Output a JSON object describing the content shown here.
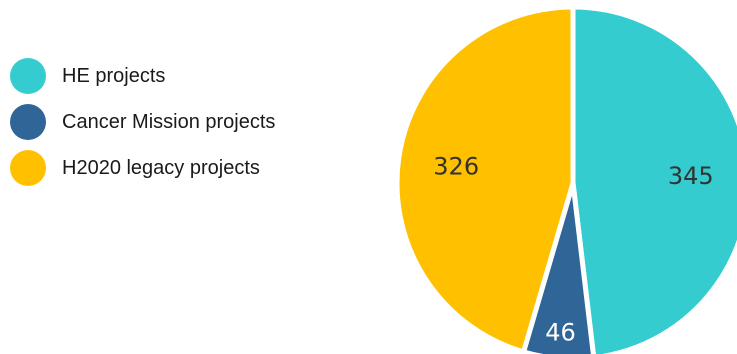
{
  "chart_data": {
    "type": "pie",
    "title": "",
    "legend_position": "left",
    "slices": [
      {
        "label": "HE projects",
        "value": 345,
        "color": "#35cccf",
        "label_color": "#333333"
      },
      {
        "label": "Cancer Mission projects",
        "value": 46,
        "color": "#2f6597",
        "label_color": "#ffffff"
      },
      {
        "label": "H2020 legacy projects",
        "value": 326,
        "color": "#ffc000",
        "label_color": "#333333"
      }
    ]
  }
}
